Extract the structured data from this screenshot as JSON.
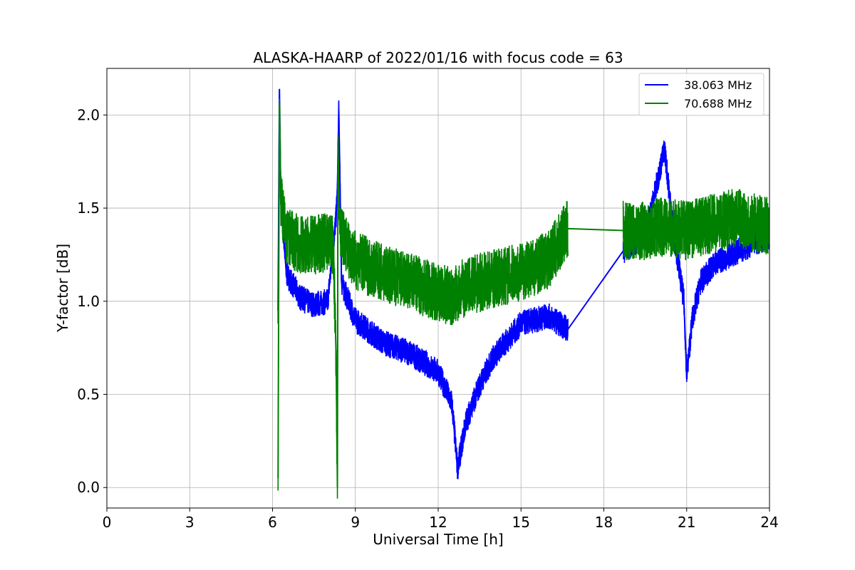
{
  "chart_data": {
    "type": "line",
    "title": "ALASKA-HAARP of 2022/01/16 with focus code = 63",
    "xlabel": "Universal Time [h]",
    "ylabel": "Y-factor [dB]",
    "xlim": [
      0,
      24
    ],
    "ylim": [
      -0.11,
      2.25
    ],
    "xticks": [
      0,
      3,
      6,
      9,
      12,
      15,
      18,
      21,
      24
    ],
    "xtick_labels": [
      "0",
      "3",
      "6",
      "9",
      "12",
      "15",
      "18",
      "21",
      "24"
    ],
    "yticks": [
      0.0,
      0.5,
      1.0,
      1.5,
      2.0
    ],
    "ytick_labels": [
      "0.0",
      "0.5",
      "1.0",
      "1.5",
      "2.0"
    ],
    "grid": true,
    "legend_position": "top-right",
    "series": [
      {
        "name": "38.063 MHz",
        "color": "#0000ff",
        "x": [
          6.2,
          6.25,
          6.3,
          6.5,
          7.0,
          7.5,
          8.0,
          8.3,
          8.35,
          8.4,
          8.5,
          9.0,
          10.0,
          11.0,
          12.0,
          12.5,
          12.7,
          13.0,
          13.5,
          14.0,
          15.0,
          16.0,
          16.7,
          18.7,
          19.5,
          20.2,
          20.5,
          20.9,
          21.0,
          21.2,
          21.5,
          22.0,
          23.0,
          24.0
        ],
        "y": [
          0.95,
          2.14,
          1.55,
          1.15,
          1.02,
          0.98,
          1.0,
          1.45,
          1.6,
          2.03,
          1.1,
          0.9,
          0.78,
          0.72,
          0.62,
          0.45,
          0.1,
          0.35,
          0.55,
          0.7,
          0.88,
          0.92,
          0.85,
          1.27,
          1.35,
          1.82,
          1.4,
          1.0,
          0.6,
          0.9,
          1.1,
          1.2,
          1.28,
          1.35
        ]
      },
      {
        "name": "70.688 MHz",
        "color": "#008000",
        "x": [
          6.2,
          6.22,
          6.25,
          6.3,
          6.5,
          7.0,
          7.5,
          8.0,
          8.2,
          8.3,
          8.35,
          8.37,
          8.4,
          8.5,
          9.0,
          10.0,
          11.0,
          12.0,
          12.5,
          13.0,
          14.0,
          15.0,
          16.0,
          16.7,
          18.7,
          19.5,
          20.0,
          21.0,
          22.0,
          22.8,
          23.5,
          24.0
        ],
        "y": [
          0.05,
          0.96,
          2.05,
          1.55,
          1.35,
          1.3,
          1.3,
          1.32,
          1.3,
          0.73,
          0.0,
          1.86,
          1.5,
          1.35,
          1.22,
          1.15,
          1.1,
          1.05,
          1.02,
          1.08,
          1.12,
          1.16,
          1.22,
          1.39,
          1.38,
          1.38,
          1.4,
          1.38,
          1.42,
          1.45,
          1.42,
          1.4
        ]
      }
    ]
  }
}
